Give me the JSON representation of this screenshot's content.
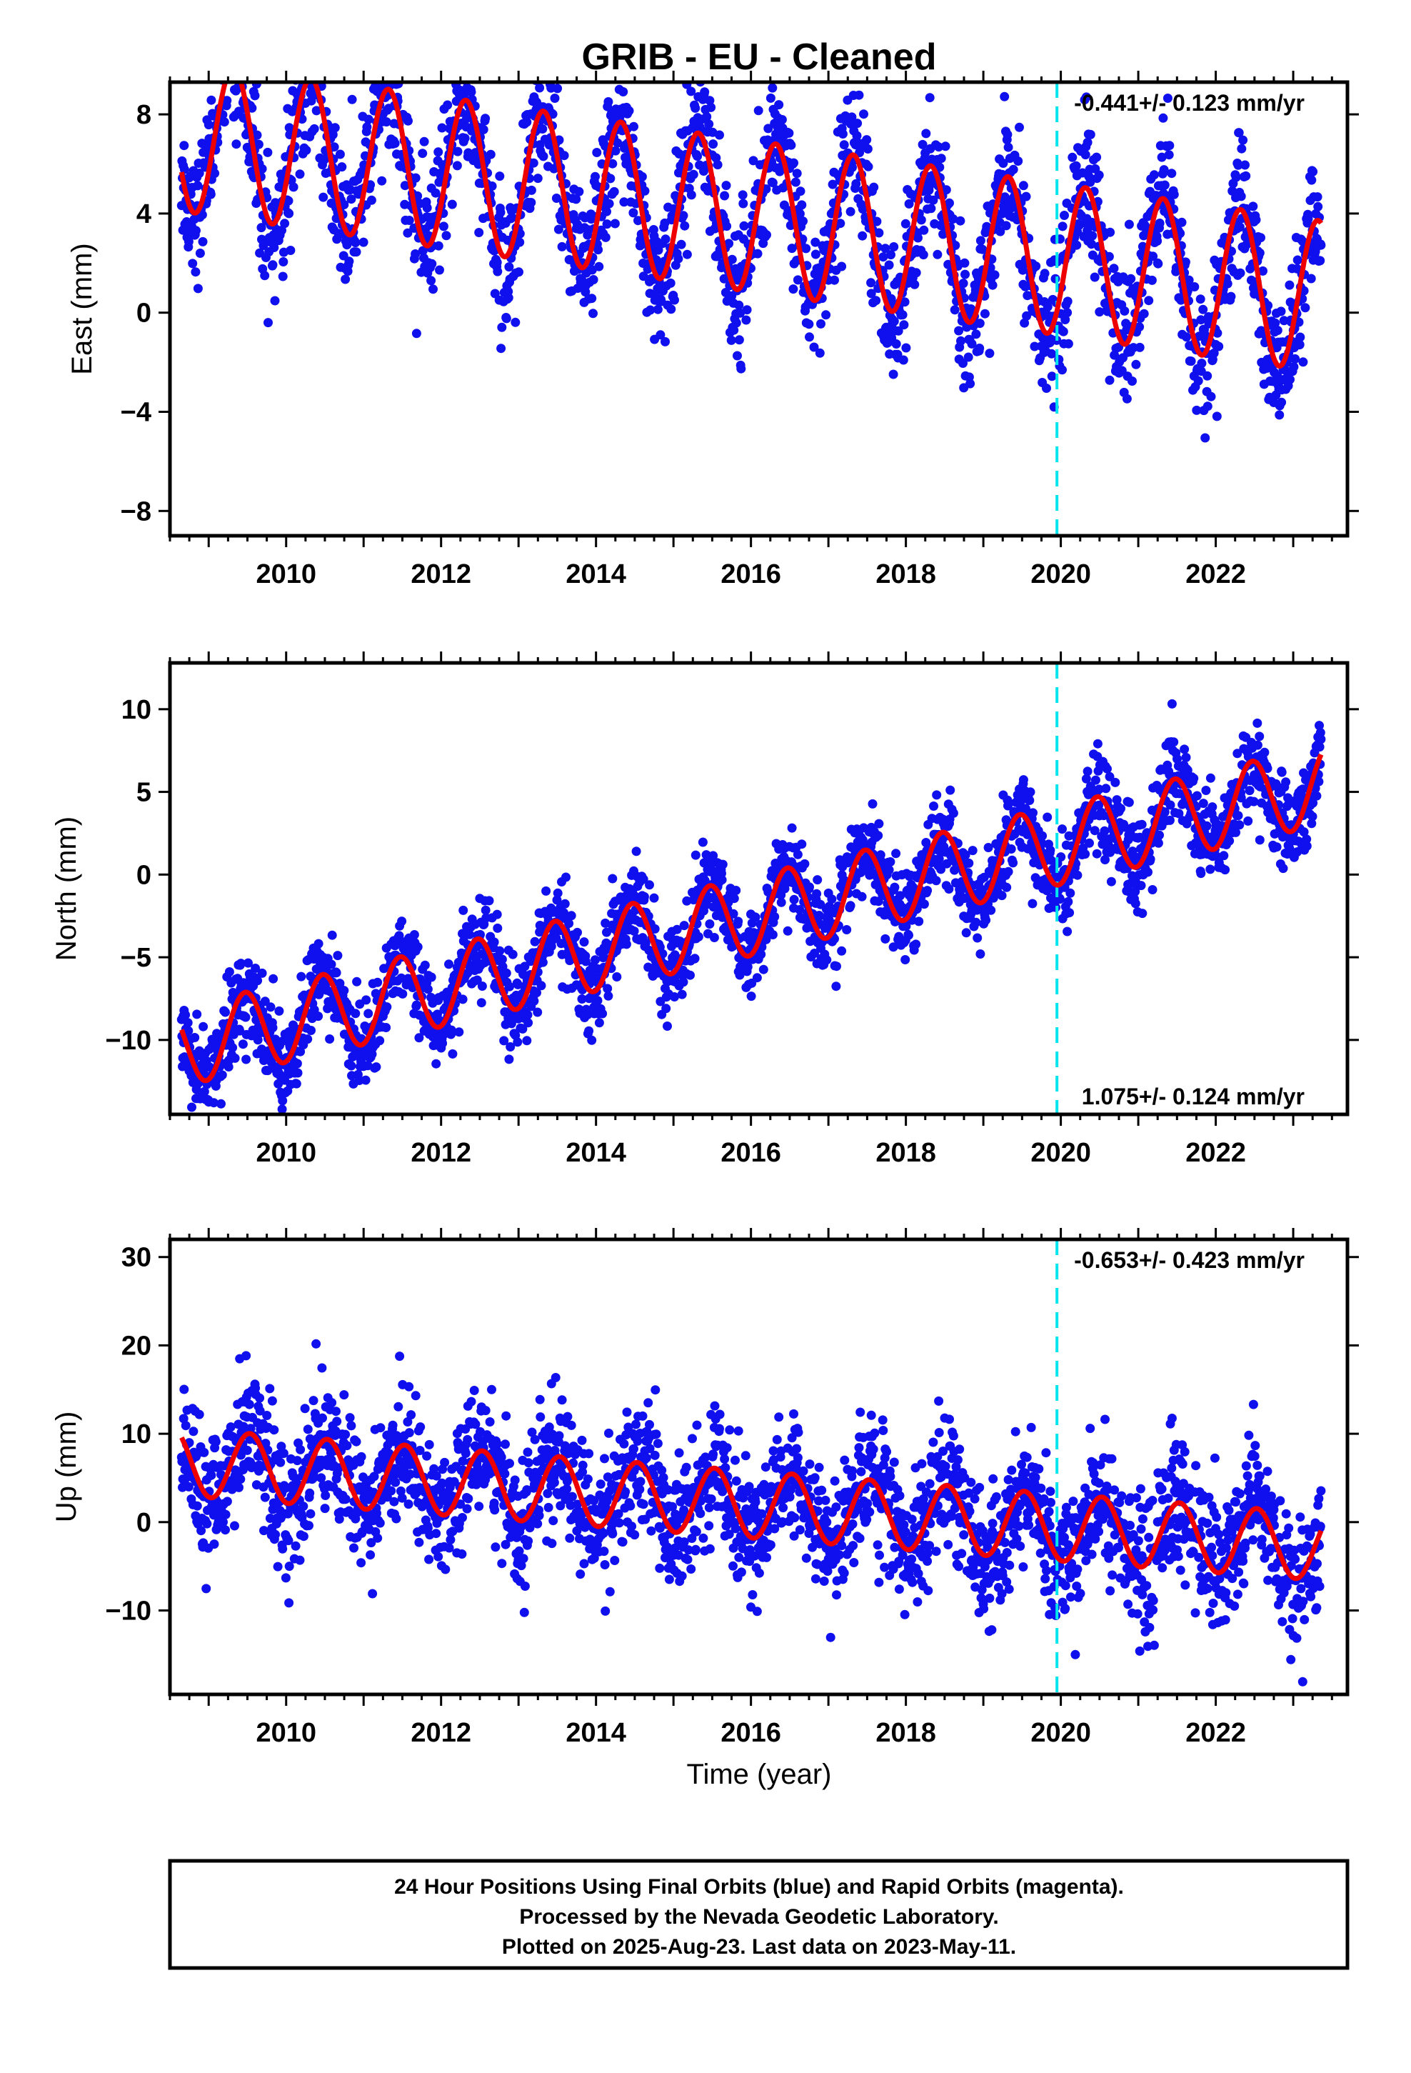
{
  "title": "GRIB  - EU - Cleaned",
  "xlabel": "Time (year)",
  "footer": {
    "line1": "24 Hour Positions Using Final Orbits (blue) and Rapid Orbits (magenta).",
    "line2": "Processed by the Nevada Geodetic Laboratory.",
    "line3": "Plotted on 2025-Aug-23. Last data on 2023-May-11."
  },
  "colors": {
    "points": "#1010ee",
    "model": "#ee0000",
    "event_line": "#00e5ee",
    "axis": "#000000"
  },
  "chart_data": [
    {
      "type": "scatter",
      "component": "East",
      "ylabel": "East (mm)",
      "rate_label": "-0.441+/- 0.123 mm/yr",
      "rate_position": "top-right",
      "xlim": [
        2008.5,
        2023.7
      ],
      "ylim": [
        -9,
        9.3
      ],
      "x_ticks": [
        2010,
        2012,
        2014,
        2016,
        2018,
        2020,
        2022
      ],
      "y_ticks": [
        -8,
        -4,
        0,
        4,
        8
      ],
      "y_tick_labels": [
        "−8",
        "−4",
        "0",
        "4",
        "8"
      ],
      "event_line_x": 2019.95,
      "data_start": 2008.65,
      "data_end": 2023.36,
      "model": {
        "offset_mm": 3.9,
        "rate_mm_per_yr": -0.441,
        "ref_year": 2016.0,
        "annual_amplitude_mm": 3.05,
        "peak_phase_year": 0.32,
        "scatter_mm": 1.3
      },
      "series": [
        {
          "name": "Final Orbits (blue)",
          "kind": "points"
        },
        {
          "name": "model fit",
          "kind": "line"
        }
      ]
    },
    {
      "type": "scatter",
      "component": "North",
      "ylabel": "North (mm)",
      "rate_label": "1.075+/- 0.124 mm/yr",
      "rate_position": "bottom-right",
      "xlim": [
        2008.5,
        2023.7
      ],
      "ylim": [
        -14.5,
        12.8
      ],
      "x_ticks": [
        2010,
        2012,
        2014,
        2016,
        2018,
        2020,
        2022
      ],
      "y_ticks": [
        -10,
        -5,
        0,
        5,
        10
      ],
      "y_tick_labels": [
        "−10",
        "−5",
        "0",
        "5",
        "10"
      ],
      "event_line_x": 2019.95,
      "data_start": 2008.65,
      "data_end": 2023.36,
      "model": {
        "offset_mm": -2.5,
        "rate_mm_per_yr": 1.075,
        "ref_year": 2016.0,
        "annual_amplitude_mm": 2.4,
        "peak_phase_year": 0.47,
        "scatter_mm": 1.3
      },
      "series": [
        {
          "name": "Final Orbits (blue)",
          "kind": "points"
        },
        {
          "name": "model fit",
          "kind": "line"
        }
      ]
    },
    {
      "type": "scatter",
      "component": "Up",
      "ylabel": "Up (mm)",
      "rate_label": "-0.653+/- 0.423 mm/yr",
      "rate_position": "top-right",
      "xlim": [
        2008.5,
        2023.7
      ],
      "ylim": [
        -19.5,
        32
      ],
      "x_ticks": [
        2010,
        2012,
        2014,
        2016,
        2018,
        2020,
        2022
      ],
      "y_ticks": [
        -10,
        0,
        10,
        20,
        30
      ],
      "y_tick_labels": [
        "−10",
        "0",
        "10",
        "20",
        "30"
      ],
      "event_line_x": 2019.95,
      "data_start": 2008.65,
      "data_end": 2023.36,
      "model": {
        "offset_mm": 2.0,
        "rate_mm_per_yr": -0.653,
        "ref_year": 2016.0,
        "annual_amplitude_mm": 3.8,
        "peak_phase_year": 0.53,
        "scatter_mm": 3.6
      },
      "series": [
        {
          "name": "Final Orbits (blue)",
          "kind": "points"
        },
        {
          "name": "model fit",
          "kind": "line"
        }
      ]
    }
  ]
}
